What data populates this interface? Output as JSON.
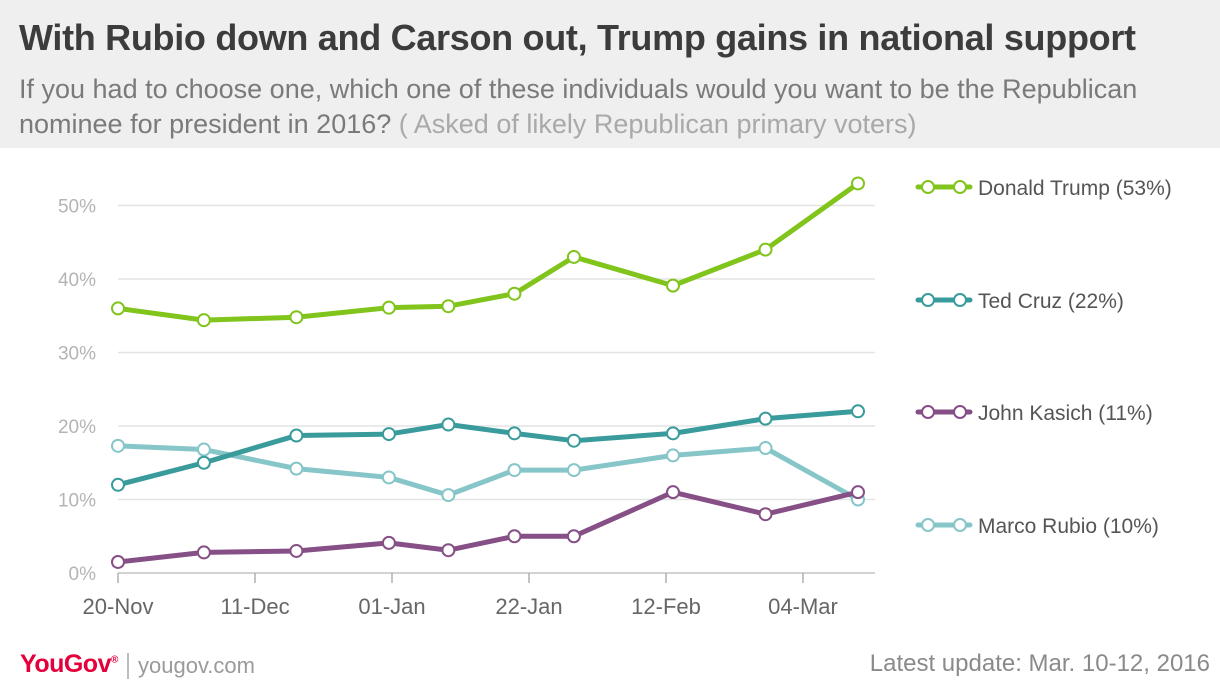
{
  "title": "With Rubio down and Carson out, Trump gains in national support",
  "subtitle": "If you had to choose one, which one of these individuals would you want to be the Republican nominee for president in 2016?",
  "subtitle_note": "( Asked of likely Republican primary voters)",
  "footer": {
    "brand": "YouGov",
    "brand_mark": "®",
    "site": "yougov.com",
    "update": "Latest update: Mar. 10-12, 2016"
  },
  "chart_data": {
    "type": "line",
    "x_tick_labels": [
      "20-Nov",
      "11-Dec",
      "01-Jan",
      "22-Jan",
      "12-Feb",
      "04-Mar"
    ],
    "y_tick_labels": [
      "0%",
      "10%",
      "20%",
      "30%",
      "40%",
      "50%"
    ],
    "ylim": [
      0,
      55
    ],
    "grid": "horizontal",
    "legend": "right",
    "x": [
      "2015-11-20",
      "2015-12-03",
      "2015-12-17",
      "2015-12-31",
      "2016-01-09",
      "2016-01-19",
      "2016-01-28",
      "2016-02-12",
      "2016-02-26",
      "2016-03-11"
    ],
    "series": [
      {
        "name": "Donald Trump (53%)",
        "color": "#80c41c",
        "values": [
          36,
          34.4,
          34.8,
          36.1,
          36.3,
          38,
          43,
          39.1,
          44,
          53
        ]
      },
      {
        "name": "Ted Cruz (22%)",
        "color": "#3a9b9c",
        "values": [
          12,
          15,
          18.7,
          18.9,
          20.2,
          19,
          18,
          19,
          21,
          22
        ]
      },
      {
        "name": "John Kasich (11%)",
        "color": "#864f86",
        "values": [
          1.5,
          2.8,
          3,
          4.1,
          3.1,
          5,
          5,
          11,
          8,
          11
        ]
      },
      {
        "name": "Marco Rubio (10%)",
        "color": "#86c5c8",
        "values": [
          17.3,
          16.8,
          14.2,
          13,
          10.6,
          14,
          14,
          16,
          17,
          10
        ]
      }
    ]
  }
}
